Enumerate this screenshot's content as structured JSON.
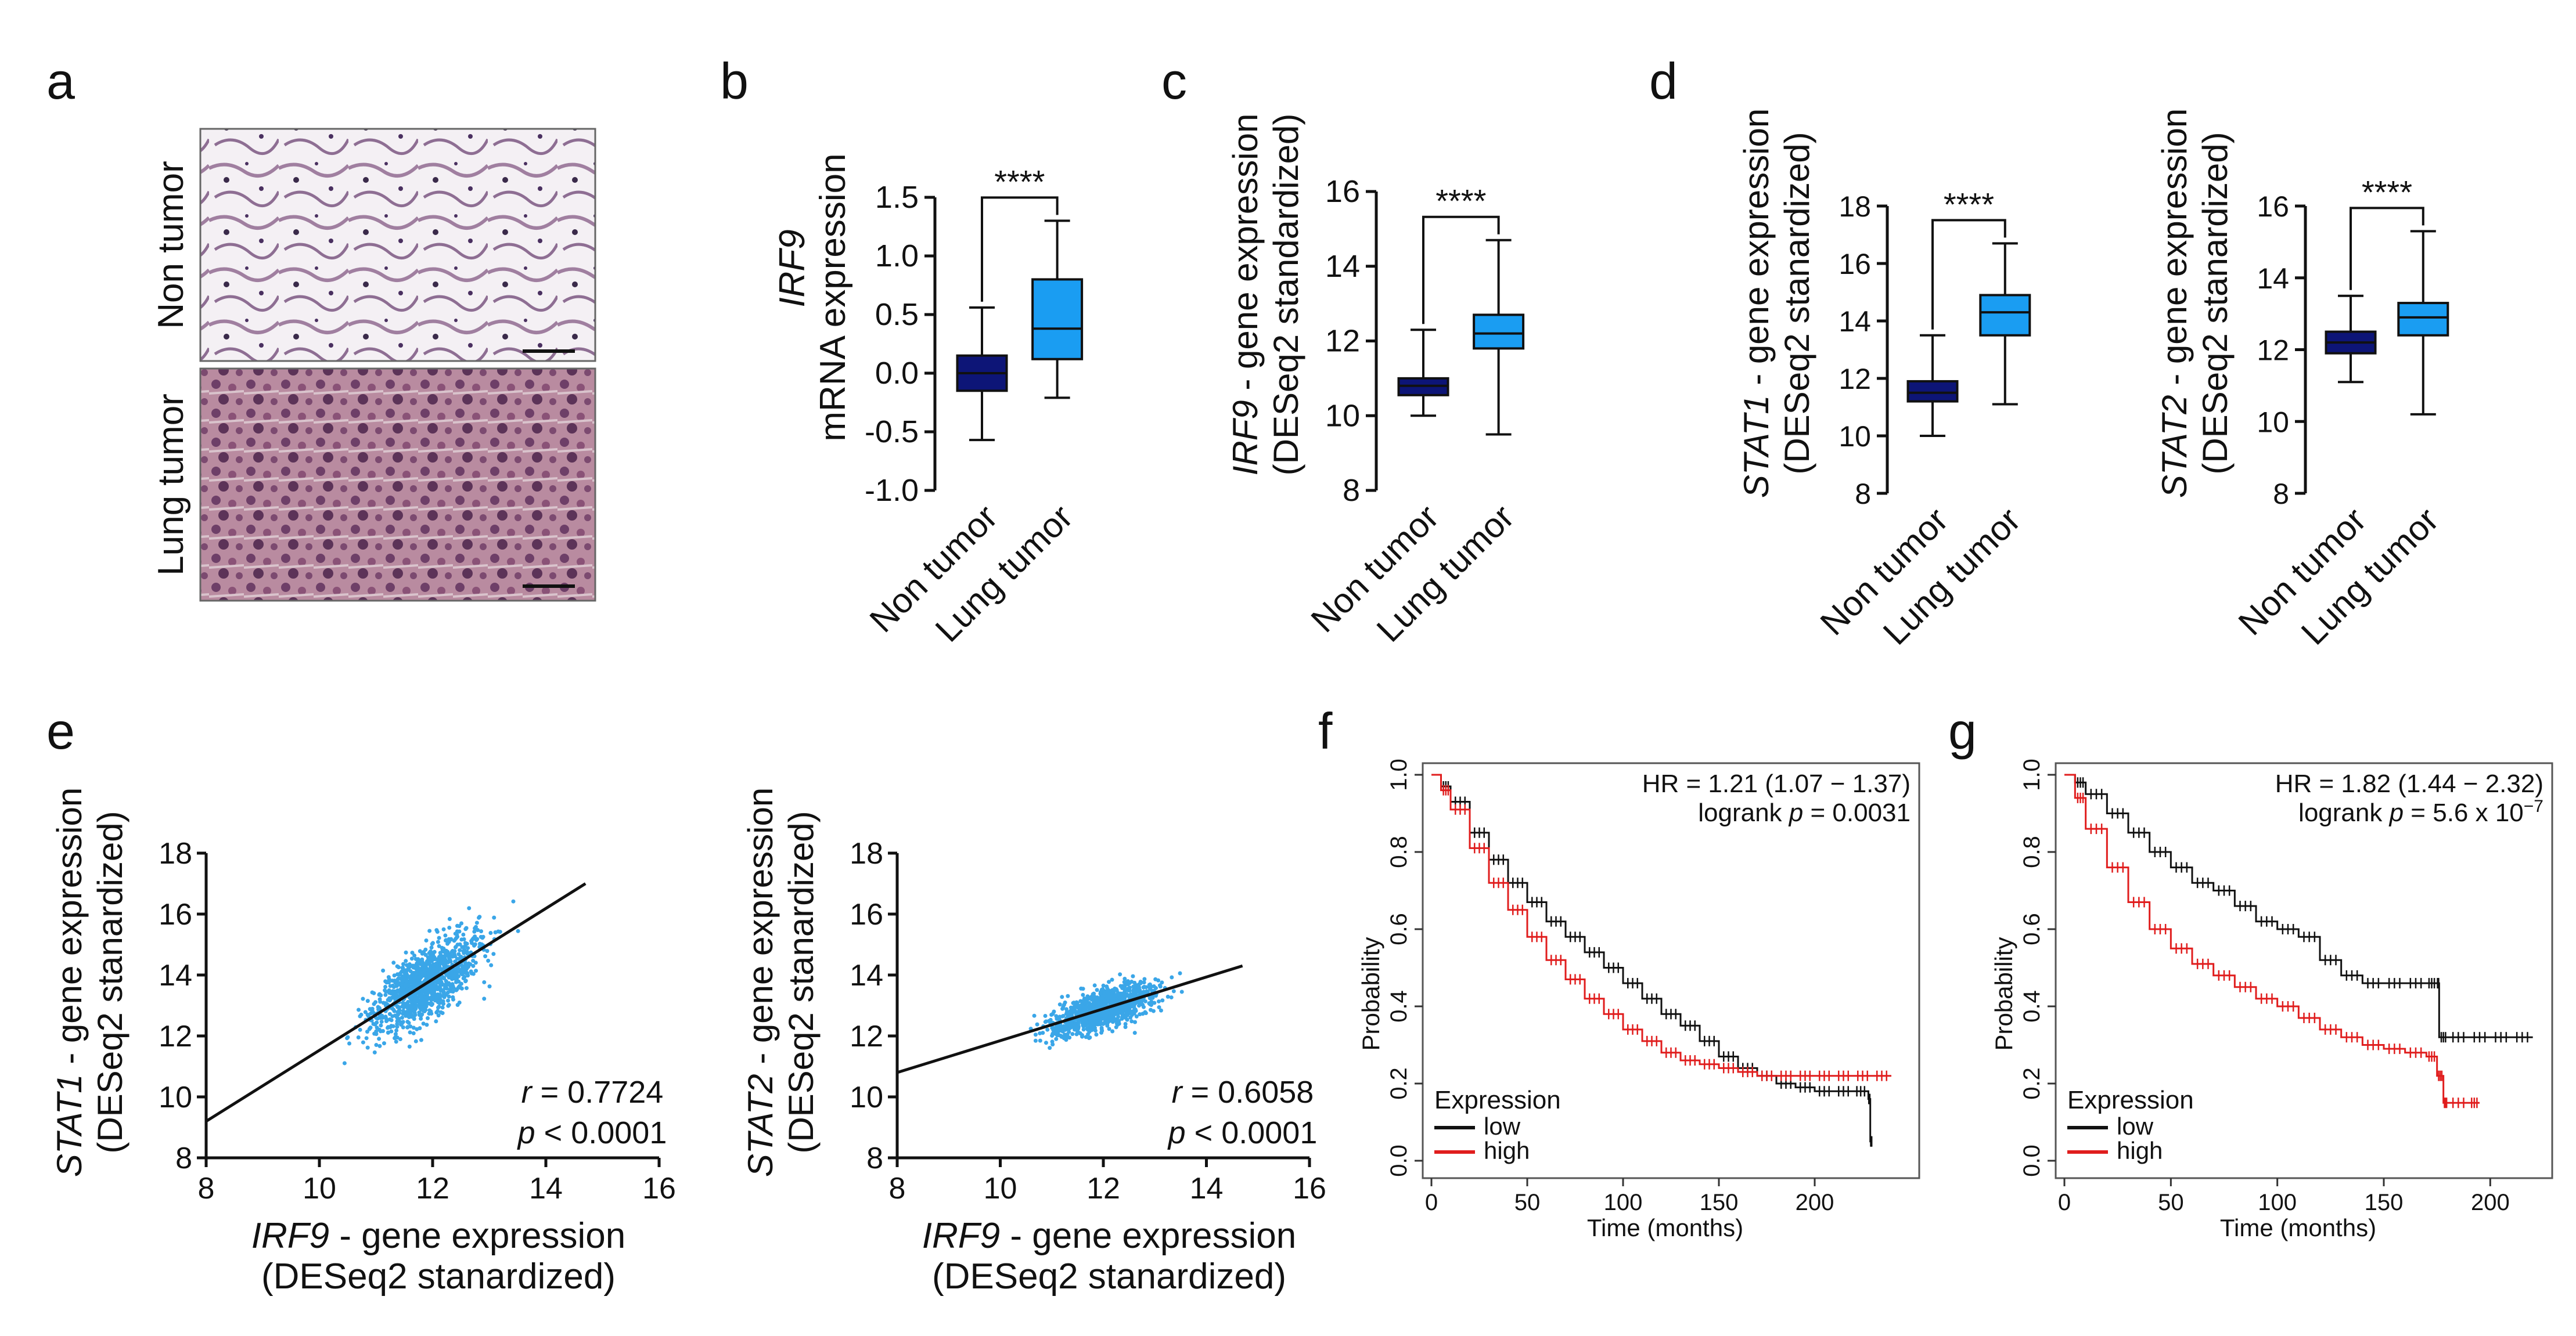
{
  "panels": {
    "a": {
      "letter": "a",
      "top_label": "Non tumor",
      "bottom_label": "Lung tumor"
    }
  },
  "chart_data": [
    {
      "panel": "b",
      "type": "box",
      "title": "",
      "ylabel_italic": "IRF9",
      "ylabel": "mRNA expression",
      "ylim": [
        -1.0,
        1.5
      ],
      "yticks": [
        "-1.0",
        "-0.5",
        "0.0",
        "0.5",
        "1.0",
        "1.5"
      ],
      "categories": [
        "Non tumor",
        "Lung tumor"
      ],
      "boxes": [
        {
          "name": "Non tumor",
          "min": -0.57,
          "q1": -0.15,
          "median": 0.0,
          "q3": 0.15,
          "max": 0.56,
          "color": "#0d1577"
        },
        {
          "name": "Lung tumor",
          "min": -0.21,
          "q1": 0.12,
          "median": 0.38,
          "q3": 0.8,
          "max": 1.3,
          "color": "#1a9df2"
        }
      ],
      "significance": "****"
    },
    {
      "panel": "c",
      "type": "box",
      "ylabel_italic": "IRF9",
      "ylabel": " - gene expression",
      "ylabel2": "(DESeq2 standardized)",
      "ylim": [
        8,
        16
      ],
      "yticks": [
        "8",
        "10",
        "12",
        "14",
        "16"
      ],
      "categories": [
        "Non tumor",
        "Lung tumor"
      ],
      "boxes": [
        {
          "name": "Non tumor",
          "min": 10.0,
          "q1": 10.55,
          "median": 10.8,
          "q3": 11.0,
          "max": 12.3,
          "color": "#0d1577"
        },
        {
          "name": "Lung tumor",
          "min": 9.5,
          "q1": 11.8,
          "median": 12.2,
          "q3": 12.7,
          "max": 14.7,
          "color": "#1a9df2"
        }
      ],
      "significance": "****"
    },
    {
      "panel": "d1",
      "type": "box",
      "ylabel_italic": "STAT1",
      "ylabel": " - gene expression",
      "ylabel2": "(DESeq2 stanardized)",
      "ylim": [
        8,
        18
      ],
      "yticks": [
        "8",
        "10",
        "12",
        "14",
        "16",
        "18"
      ],
      "categories": [
        "Non tumor",
        "Lung tumor"
      ],
      "boxes": [
        {
          "name": "Non tumor",
          "min": 10.0,
          "q1": 11.2,
          "median": 11.5,
          "q3": 11.9,
          "max": 13.5,
          "color": "#0d1577"
        },
        {
          "name": "Lung tumor",
          "min": 11.1,
          "q1": 13.5,
          "median": 14.3,
          "q3": 14.9,
          "max": 16.7,
          "color": "#1a9df2"
        }
      ],
      "significance": "****"
    },
    {
      "panel": "d2",
      "type": "box",
      "ylabel_italic": "STAT2",
      "ylabel": " - gene expression",
      "ylabel2": "(DESeq2 stanardized)",
      "ylim": [
        8,
        16
      ],
      "yticks": [
        "8",
        "10",
        "12",
        "14",
        "16"
      ],
      "categories": [
        "Non tumor",
        "Lung tumor"
      ],
      "boxes": [
        {
          "name": "Non tumor",
          "min": 11.1,
          "q1": 11.9,
          "median": 12.2,
          "q3": 12.5,
          "max": 13.5,
          "color": "#0d1577"
        },
        {
          "name": "Lung tumor",
          "min": 10.2,
          "q1": 12.4,
          "median": 12.9,
          "q3": 13.3,
          "max": 15.3,
          "color": "#1a9df2"
        }
      ],
      "significance": "****"
    },
    {
      "panel": "e1",
      "type": "scatter",
      "xlabel_italic": "IRF9",
      "xlabel": " - gene expression",
      "xlabel2": "(DESeq2 stanardized)",
      "ylabel_italic": "STAT1",
      "ylabel": " - gene expression",
      "ylabel2": "(DESeq2 stanardized)",
      "xlim": [
        8,
        16
      ],
      "ylim": [
        8,
        18
      ],
      "xticks": [
        "8",
        "10",
        "12",
        "14",
        "16"
      ],
      "yticks": [
        "8",
        "10",
        "12",
        "14",
        "16",
        "18"
      ],
      "fit_line": {
        "x": [
          8,
          14.7
        ],
        "y": [
          9.2,
          17.0
        ]
      },
      "center": [
        11.9,
        13.1
      ],
      "spread": [
        0.85,
        1.35
      ],
      "n_points": 1100,
      "r_text": "= 0.7724",
      "p_text": "< 0.0001",
      "point_color": "#3aa6e8"
    },
    {
      "panel": "e2",
      "type": "scatter",
      "xlabel_italic": "IRF9",
      "xlabel": " - gene expression",
      "xlabel2": "(DESeq2 stanardized)",
      "ylabel_italic": "STAT2",
      "ylabel": " - gene expression",
      "ylabel2": "(DESeq2 stanardized)",
      "xlim": [
        8,
        16
      ],
      "ylim": [
        8,
        18
      ],
      "xticks": [
        "8",
        "10",
        "12",
        "14",
        "16"
      ],
      "yticks": [
        "8",
        "10",
        "12",
        "14",
        "16",
        "18"
      ],
      "fit_line": {
        "x": [
          8,
          14.7
        ],
        "y": [
          10.8,
          14.3
        ]
      },
      "center": [
        12.0,
        12.7
      ],
      "spread": [
        0.9,
        0.75
      ],
      "n_points": 1000,
      "r_text": "= 0.6058",
      "p_text": "< 0.0001",
      "point_color": "#3aa6e8"
    },
    {
      "panel": "f",
      "type": "line",
      "subtype": "kaplan-meier",
      "xlabel": "Time (months)",
      "ylabel": "Probability",
      "xlim": [
        0,
        250
      ],
      "ylim": [
        0,
        1.0
      ],
      "xticks": [
        "0",
        "50",
        "100",
        "150",
        "200"
      ],
      "yticks": [
        "0.0",
        "0.2",
        "0.4",
        "0.6",
        "0.8",
        "1.0"
      ],
      "hr_text": "HR = 1.21 (1.07 − 1.37)",
      "logrank_prefix": "logrank ",
      "p_label": "p",
      "logrank_value": " = 0.0031",
      "legend_title": "Expression",
      "series": [
        {
          "name": "low",
          "color": "#111111",
          "x": [
            0,
            5,
            10,
            20,
            30,
            40,
            50,
            60,
            70,
            80,
            90,
            100,
            110,
            120,
            130,
            140,
            150,
            160,
            170,
            180,
            190,
            200,
            210,
            220,
            228,
            229,
            230
          ],
          "y": [
            1.0,
            0.97,
            0.93,
            0.85,
            0.78,
            0.72,
            0.67,
            0.62,
            0.58,
            0.54,
            0.5,
            0.46,
            0.42,
            0.38,
            0.35,
            0.31,
            0.27,
            0.24,
            0.22,
            0.2,
            0.19,
            0.18,
            0.18,
            0.18,
            0.16,
            0.05,
            0.05
          ]
        },
        {
          "name": "high",
          "color": "#e01d1d",
          "x": [
            0,
            5,
            10,
            20,
            30,
            40,
            50,
            60,
            70,
            80,
            90,
            100,
            110,
            120,
            130,
            140,
            150,
            160,
            170,
            180,
            190,
            200,
            210,
            220,
            230,
            240
          ],
          "y": [
            1.0,
            0.96,
            0.91,
            0.81,
            0.72,
            0.65,
            0.58,
            0.52,
            0.47,
            0.42,
            0.38,
            0.34,
            0.31,
            0.28,
            0.26,
            0.25,
            0.24,
            0.23,
            0.22,
            0.22,
            0.22,
            0.22,
            0.22,
            0.22,
            0.22,
            0.22
          ]
        }
      ]
    },
    {
      "panel": "g",
      "type": "line",
      "subtype": "kaplan-meier",
      "xlabel": "Time (months)",
      "ylabel": "Probability",
      "xlim": [
        0,
        225
      ],
      "ylim": [
        0,
        1.0
      ],
      "xticks": [
        "0",
        "50",
        "100",
        "150",
        "200"
      ],
      "yticks": [
        "0.0",
        "0.2",
        "0.4",
        "0.6",
        "0.8",
        "1.0"
      ],
      "hr_text": "HR = 1.82 (1.44 − 2.32)",
      "logrank_prefix": "logrank ",
      "p_label": "p",
      "logrank_value": " = 5.6 x 10",
      "logrank_exp": "−7",
      "legend_title": "Expression",
      "series": [
        {
          "name": "low",
          "color": "#111111",
          "x": [
            0,
            5,
            10,
            20,
            30,
            40,
            50,
            60,
            70,
            80,
            90,
            100,
            110,
            120,
            130,
            140,
            150,
            160,
            170,
            175,
            176,
            180,
            190,
            200,
            210,
            220
          ],
          "y": [
            1.0,
            0.98,
            0.95,
            0.9,
            0.85,
            0.8,
            0.76,
            0.72,
            0.7,
            0.66,
            0.62,
            0.6,
            0.58,
            0.52,
            0.48,
            0.46,
            0.46,
            0.46,
            0.46,
            0.46,
            0.32,
            0.32,
            0.32,
            0.32,
            0.32,
            0.32
          ]
        },
        {
          "name": "high",
          "color": "#e01d1d",
          "x": [
            0,
            5,
            10,
            20,
            30,
            40,
            50,
            60,
            70,
            80,
            90,
            100,
            110,
            120,
            130,
            140,
            150,
            160,
            170,
            175,
            178,
            180,
            190,
            195
          ],
          "y": [
            1.0,
            0.94,
            0.86,
            0.76,
            0.67,
            0.6,
            0.55,
            0.51,
            0.48,
            0.45,
            0.42,
            0.4,
            0.37,
            0.34,
            0.32,
            0.3,
            0.29,
            0.28,
            0.27,
            0.22,
            0.15,
            0.15,
            0.15,
            0.15
          ]
        }
      ]
    }
  ]
}
